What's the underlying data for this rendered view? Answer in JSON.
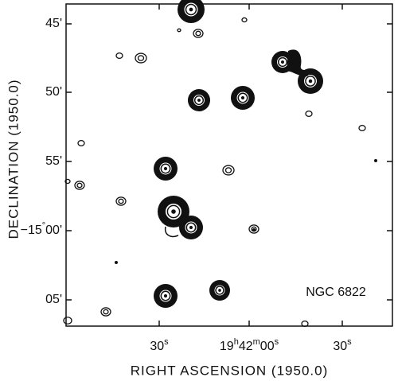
{
  "y_axis": {
    "label": "DECLINATION (1950.0)",
    "ticks": [
      [
        "45'"
      ],
      [
        "50'"
      ],
      [
        "55'"
      ],
      [
        "−15",
        "°",
        "00'"
      ],
      [
        "05'"
      ]
    ]
  },
  "x_axis": {
    "label": "RIGHT ASCENSION (1950.0)",
    "ticks": [
      [
        "30",
        "s"
      ],
      [
        "19",
        "h",
        "42",
        "m",
        "00",
        "s"
      ],
      [
        "30",
        "s"
      ]
    ]
  },
  "annotation": "NGC 6822"
}
